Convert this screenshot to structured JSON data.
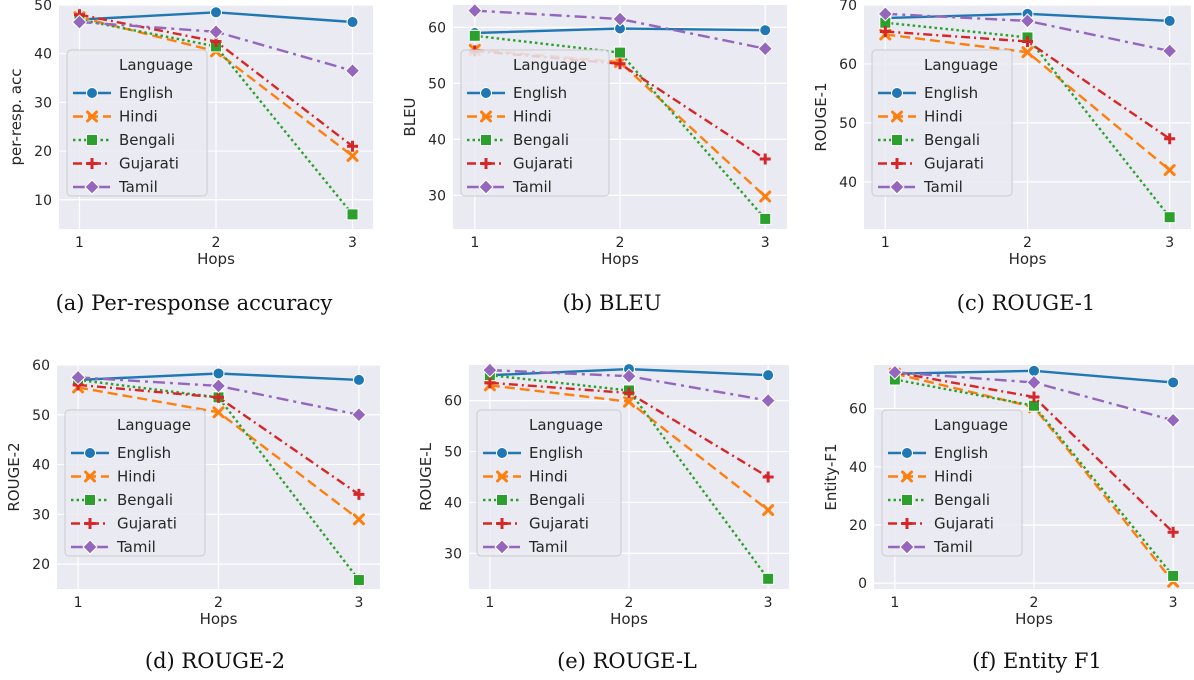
{
  "colors": {
    "plot_bg": "#EAEAF2",
    "grid": "#FFFFFF",
    "legend_bg": "#EAEAF2",
    "English": "#1F77B4",
    "Hindi": "#FF7F0E",
    "Bengali": "#2CA02C",
    "Gujarati": "#D62728",
    "Tamil": "#9467BD"
  },
  "chart_data": [
    {
      "type": "line",
      "caption": "(a)  Per-response accuracy",
      "xlabel": "Hops",
      "ylabel": "per-resp. acc",
      "x": [
        1,
        2,
        3
      ],
      "xlim": [
        0.85,
        3.15
      ],
      "ylim": [
        4,
        50
      ],
      "yticks": [
        10,
        20,
        30,
        40,
        50
      ],
      "legend": {
        "title": "Language",
        "placement": "center-left"
      },
      "grid": true,
      "series": [
        {
          "name": "English",
          "marker": "circle",
          "dash": "solid",
          "values": [
            47.0,
            48.5,
            46.5
          ]
        },
        {
          "name": "Hindi",
          "marker": "x",
          "dash": "dashed",
          "values": [
            47.5,
            40.5,
            19.0
          ]
        },
        {
          "name": "Bengali",
          "marker": "square",
          "dash": "dotted",
          "values": [
            47.0,
            41.5,
            7.0
          ]
        },
        {
          "name": "Gujarati",
          "marker": "plus",
          "dash": "dashdot",
          "values": [
            48.0,
            42.5,
            21.0
          ]
        },
        {
          "name": "Tamil",
          "marker": "diamond",
          "dash": "dashdot2",
          "values": [
            46.5,
            44.5,
            36.5
          ]
        }
      ]
    },
    {
      "type": "line",
      "caption": "(b)  BLEU",
      "xlabel": "Hops",
      "ylabel": "BLEU",
      "x": [
        1,
        2,
        3
      ],
      "xlim": [
        0.85,
        3.15
      ],
      "ylim": [
        24,
        64
      ],
      "yticks": [
        30,
        40,
        50,
        60
      ],
      "legend": {
        "title": "Language",
        "placement": "center-left"
      },
      "grid": true,
      "series": [
        {
          "name": "English",
          "marker": "circle",
          "dash": "solid",
          "values": [
            59.0,
            59.8,
            59.5
          ]
        },
        {
          "name": "Hindi",
          "marker": "x",
          "dash": "dashed",
          "values": [
            56.0,
            53.8,
            29.8
          ]
        },
        {
          "name": "Bengali",
          "marker": "square",
          "dash": "dotted",
          "values": [
            58.5,
            55.5,
            25.8
          ]
        },
        {
          "name": "Gujarati",
          "marker": "plus",
          "dash": "dashdot",
          "values": [
            55.8,
            53.5,
            36.5
          ]
        },
        {
          "name": "Tamil",
          "marker": "diamond",
          "dash": "dashdot2",
          "values": [
            63.0,
            61.5,
            56.2
          ]
        }
      ]
    },
    {
      "type": "line",
      "caption": "(c)  ROUGE-1",
      "xlabel": "Hops",
      "ylabel": "ROUGE-1",
      "x": [
        1,
        2,
        3
      ],
      "xlim": [
        0.85,
        3.15
      ],
      "ylim": [
        32,
        70
      ],
      "yticks": [
        40,
        50,
        60,
        70
      ],
      "legend": {
        "title": "Language",
        "placement": "center-left"
      },
      "grid": true,
      "series": [
        {
          "name": "English",
          "marker": "circle",
          "dash": "solid",
          "values": [
            67.8,
            68.5,
            67.3
          ]
        },
        {
          "name": "Hindi",
          "marker": "x",
          "dash": "dashed",
          "values": [
            65.0,
            62.0,
            42.0
          ]
        },
        {
          "name": "Bengali",
          "marker": "square",
          "dash": "dotted",
          "values": [
            67.0,
            64.5,
            34.0
          ]
        },
        {
          "name": "Gujarati",
          "marker": "plus",
          "dash": "dashdot",
          "values": [
            65.5,
            63.8,
            47.3
          ]
        },
        {
          "name": "Tamil",
          "marker": "diamond",
          "dash": "dashdot2",
          "values": [
            68.5,
            67.3,
            62.2
          ]
        }
      ]
    },
    {
      "type": "line",
      "caption": "(d)  ROUGE-2",
      "xlabel": "Hops",
      "ylabel": "ROUGE-2",
      "x": [
        1,
        2,
        3
      ],
      "xlim": [
        0.85,
        3.15
      ],
      "ylim": [
        15,
        60
      ],
      "yticks": [
        20,
        30,
        40,
        50,
        60
      ],
      "legend": {
        "title": "Language",
        "placement": "center-left"
      },
      "grid": true,
      "series": [
        {
          "name": "English",
          "marker": "circle",
          "dash": "solid",
          "values": [
            57.0,
            58.3,
            57.0
          ]
        },
        {
          "name": "Hindi",
          "marker": "x",
          "dash": "dashed",
          "values": [
            55.5,
            50.5,
            29.0
          ]
        },
        {
          "name": "Bengali",
          "marker": "square",
          "dash": "dotted",
          "values": [
            57.0,
            53.5,
            16.8
          ]
        },
        {
          "name": "Gujarati",
          "marker": "plus",
          "dash": "dashdot",
          "values": [
            56.0,
            53.5,
            34.0
          ]
        },
        {
          "name": "Tamil",
          "marker": "diamond",
          "dash": "dashdot2",
          "values": [
            57.5,
            55.8,
            50.0
          ]
        }
      ]
    },
    {
      "type": "line",
      "caption": "(e)  ROUGE-L",
      "xlabel": "Hops",
      "ylabel": "ROUGE-L",
      "x": [
        1,
        2,
        3
      ],
      "xlim": [
        0.85,
        3.15
      ],
      "ylim": [
        23,
        67
      ],
      "yticks": [
        30,
        40,
        50,
        60
      ],
      "legend": {
        "title": "Language",
        "placement": "center-left"
      },
      "grid": true,
      "series": [
        {
          "name": "English",
          "marker": "circle",
          "dash": "solid",
          "values": [
            65.0,
            66.2,
            65.0
          ]
        },
        {
          "name": "Hindi",
          "marker": "x",
          "dash": "dashed",
          "values": [
            63.0,
            59.8,
            38.5
          ]
        },
        {
          "name": "Bengali",
          "marker": "square",
          "dash": "dotted",
          "values": [
            65.0,
            62.0,
            25.0
          ]
        },
        {
          "name": "Gujarati",
          "marker": "plus",
          "dash": "dashdot",
          "values": [
            63.5,
            61.5,
            45.0
          ]
        },
        {
          "name": "Tamil",
          "marker": "diamond",
          "dash": "dashdot2",
          "values": [
            66.0,
            64.8,
            60.0
          ]
        }
      ]
    },
    {
      "type": "line",
      "caption": "(f)  Entity F1",
      "xlabel": "Hops",
      "ylabel": "Entity-F1",
      "x": [
        1,
        2,
        3
      ],
      "xlim": [
        0.85,
        3.15
      ],
      "ylim": [
        -2,
        75
      ],
      "yticks": [
        0,
        20,
        40,
        60
      ],
      "legend": {
        "title": "Language",
        "placement": "center-left"
      },
      "grid": true,
      "series": [
        {
          "name": "English",
          "marker": "circle",
          "dash": "solid",
          "values": [
            72.0,
            73.0,
            69.0
          ]
        },
        {
          "name": "Hindi",
          "marker": "x",
          "dash": "dashed",
          "values": [
            72.0,
            60.5,
            0.5
          ]
        },
        {
          "name": "Bengali",
          "marker": "square",
          "dash": "dotted",
          "values": [
            70.0,
            61.0,
            2.5
          ]
        },
        {
          "name": "Gujarati",
          "marker": "plus",
          "dash": "dashdot",
          "values": [
            72.5,
            64.0,
            17.5
          ]
        },
        {
          "name": "Tamil",
          "marker": "diamond",
          "dash": "dashdot2",
          "values": [
            72.5,
            69.0,
            56.0
          ]
        }
      ]
    }
  ]
}
